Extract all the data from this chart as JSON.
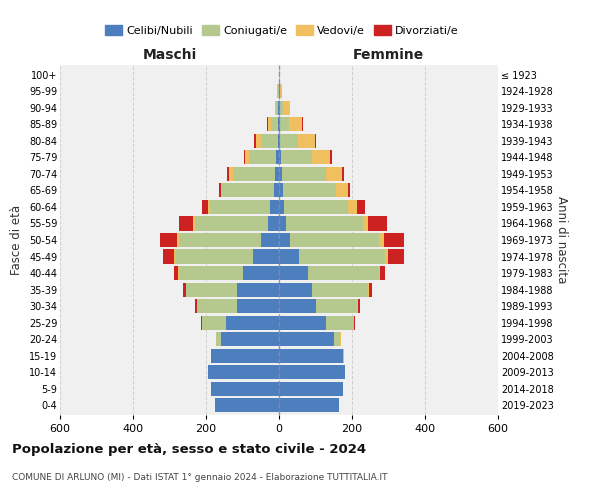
{
  "age_groups": [
    "0-4",
    "5-9",
    "10-14",
    "15-19",
    "20-24",
    "25-29",
    "30-34",
    "35-39",
    "40-44",
    "45-49",
    "50-54",
    "55-59",
    "60-64",
    "65-69",
    "70-74",
    "75-79",
    "80-84",
    "85-89",
    "90-94",
    "95-99",
    "100+"
  ],
  "birth_years": [
    "2019-2023",
    "2014-2018",
    "2009-2013",
    "2004-2008",
    "1999-2003",
    "1994-1998",
    "1989-1993",
    "1984-1988",
    "1979-1983",
    "1974-1978",
    "1969-1973",
    "1964-1968",
    "1959-1963",
    "1954-1958",
    "1949-1953",
    "1944-1948",
    "1939-1943",
    "1934-1938",
    "1929-1933",
    "1924-1928",
    "≤ 1923"
  ],
  "colors": {
    "celibi": "#4d7ebe",
    "coniugati": "#b5c98e",
    "vedovi": "#f0c060",
    "divorziati": "#cc2222"
  },
  "legend_labels": [
    "Celibi/Nubili",
    "Coniugati/e",
    "Vedovi/e",
    "Divorziati/e"
  ],
  "legend_colors": [
    "#4d7ebe",
    "#b5c98e",
    "#f0c060",
    "#cc2222"
  ],
  "males": {
    "celibi": [
      175,
      185,
      195,
      185,
      160,
      145,
      115,
      115,
      100,
      70,
      50,
      30,
      25,
      15,
      12,
      7,
      4,
      3,
      2,
      1,
      1
    ],
    "coniugati": [
      0,
      0,
      0,
      2,
      12,
      65,
      110,
      140,
      175,
      215,
      225,
      200,
      165,
      140,
      115,
      75,
      45,
      18,
      5,
      2,
      0
    ],
    "vedovi": [
      0,
      0,
      0,
      0,
      1,
      1,
      1,
      1,
      2,
      3,
      5,
      5,
      5,
      5,
      10,
      10,
      15,
      10,
      5,
      2,
      0
    ],
    "divorziati": [
      0,
      0,
      0,
      0,
      0,
      2,
      4,
      8,
      12,
      30,
      45,
      40,
      15,
      5,
      5,
      4,
      4,
      2,
      0,
      0,
      0
    ]
  },
  "females": {
    "nubili": [
      165,
      175,
      180,
      175,
      150,
      130,
      100,
      90,
      80,
      55,
      30,
      20,
      15,
      10,
      8,
      5,
      3,
      3,
      2,
      2,
      1
    ],
    "coniugate": [
      0,
      0,
      1,
      3,
      18,
      75,
      115,
      155,
      195,
      235,
      245,
      210,
      175,
      145,
      120,
      85,
      50,
      25,
      8,
      2,
      0
    ],
    "vedove": [
      0,
      0,
      0,
      0,
      1,
      1,
      2,
      2,
      3,
      8,
      12,
      15,
      25,
      35,
      45,
      50,
      45,
      35,
      20,
      5,
      1
    ],
    "divorziate": [
      0,
      0,
      0,
      0,
      0,
      2,
      4,
      8,
      12,
      45,
      55,
      50,
      20,
      5,
      5,
      4,
      4,
      2,
      0,
      0,
      0
    ]
  },
  "title": "Popolazione per età, sesso e stato civile - 2024",
  "subtitle": "COMUNE DI ARLUNO (MI) - Dati ISTAT 1° gennaio 2024 - Elaborazione TUTTITALIA.IT",
  "xlabel_left": "Maschi",
  "xlabel_right": "Femmine",
  "ylabel_left": "Fasce di età",
  "ylabel_right": "Anni di nascita",
  "xlim": 600,
  "background_color": "#ffffff",
  "plot_bg_color": "#f0f0f0",
  "grid_color": "#cccccc"
}
